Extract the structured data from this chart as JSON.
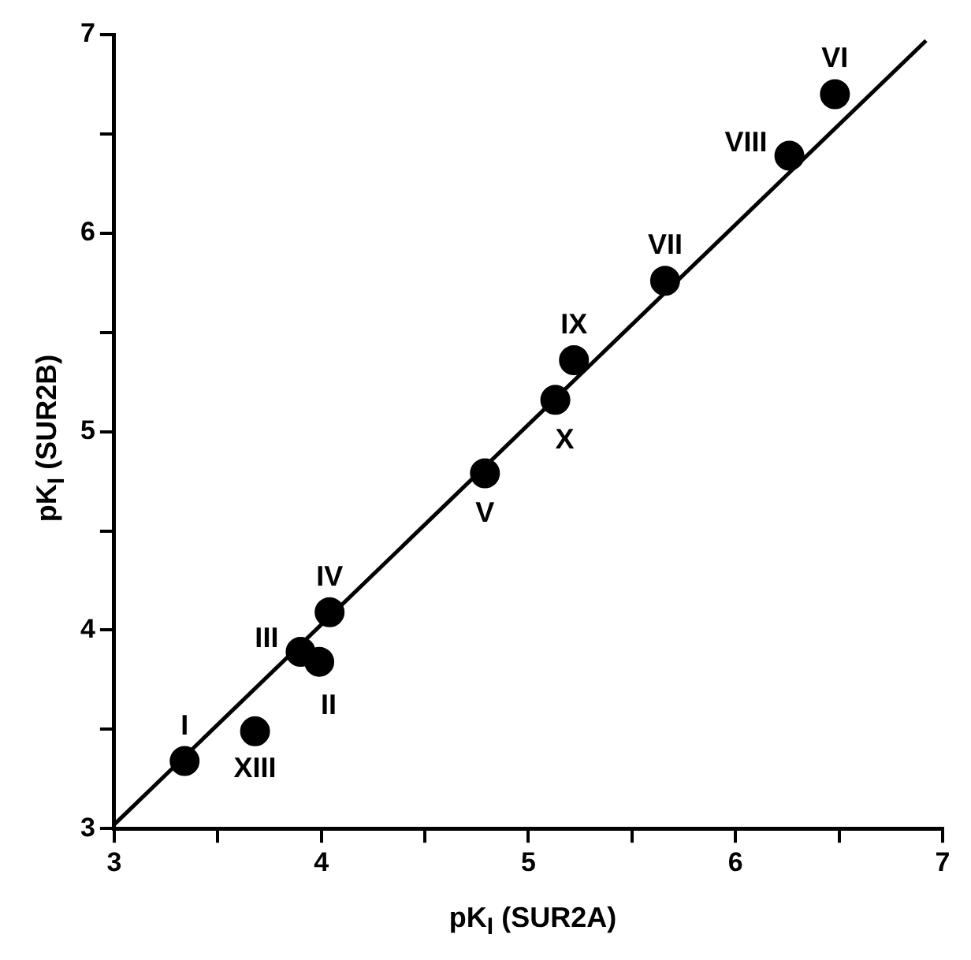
{
  "chart_data": {
    "type": "scatter",
    "xlabel": "pK$_{I}$ (SUR2A)",
    "ylabel": "pK$_{I}$ (SUR2B)",
    "x": [
      3.34,
      3.68,
      3.9,
      3.99,
      4.04,
      4.79,
      5.13,
      5.22,
      5.66,
      6.26,
      6.48
    ],
    "series": [
      {
        "color": "#000000",
        "marker": "circle",
        "values": [
          3.34,
          3.49,
          3.89,
          3.84,
          4.09,
          4.79,
          5.16,
          5.36,
          5.76,
          6.39,
          6.7
        ]
      },
      {
        "type": "line",
        "color": "#000000",
        "marker": "none",
        "x": [
          3.0,
          6.92
        ],
        "values": [
          3.02,
          6.97
        ]
      }
    ],
    "annotations": [
      {
        "text": "I",
        "x": 3.34,
        "y": 3.34
      },
      {
        "text": "XIII",
        "x": 3.68,
        "y": 3.49
      },
      {
        "text": "III",
        "x": 3.9,
        "y": 3.89
      },
      {
        "text": "II",
        "x": 3.99,
        "y": 3.84
      },
      {
        "text": "IV",
        "x": 4.04,
        "y": 4.09
      },
      {
        "text": "V",
        "x": 4.79,
        "y": 4.79
      },
      {
        "text": "X",
        "x": 5.13,
        "y": 5.16
      },
      {
        "text": "IX",
        "x": 5.22,
        "y": 5.36
      },
      {
        "text": "VII",
        "x": 5.66,
        "y": 5.76
      },
      {
        "text": "VIII",
        "x": 6.26,
        "y": 6.39
      },
      {
        "text": "VI",
        "x": 6.48,
        "y": 6.7
      }
    ],
    "xlim": [
      3,
      7
    ],
    "ylim": [
      3,
      7
    ],
    "xticks": [
      3,
      {
        "value": 3.5,
        "label": null
      },
      4,
      {
        "value": 4.5,
        "label": null
      },
      5,
      {
        "value": 5.5,
        "label": null
      },
      6,
      {
        "value": 6.5,
        "label": null
      },
      7
    ],
    "yticks": [
      3,
      {
        "value": 3.5,
        "label": null
      },
      4,
      {
        "value": 4.5,
        "label": null
      },
      5,
      {
        "value": 5.5,
        "label": null
      },
      6,
      {
        "value": 6.5,
        "label": null
      },
      7
    ],
    "grid": false,
    "legend": false,
    "line_style": "solid"
  }
}
